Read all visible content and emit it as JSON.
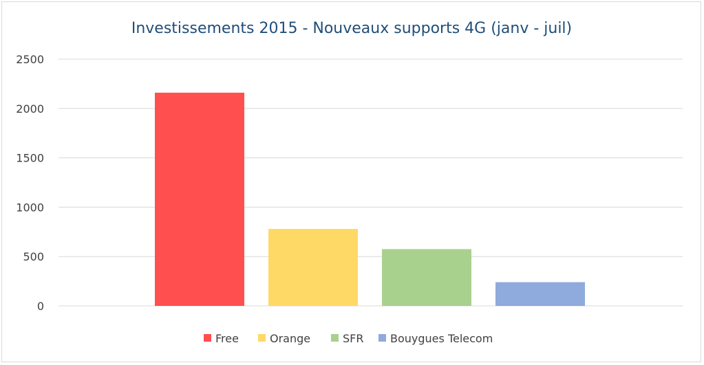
{
  "chart_data": {
    "type": "bar",
    "title": "Investissements 2015 - Nouveaux supports 4G (janv - juil)",
    "xlabel": "",
    "ylabel": "",
    "ylim": [
      0,
      2500
    ],
    "yticks": [
      0,
      500,
      1000,
      1500,
      2000,
      2500
    ],
    "grid": true,
    "legend_position": "bottom",
    "series": [
      {
        "name": "Free",
        "value": 2160,
        "color": "#ff4f4f"
      },
      {
        "name": "Orange",
        "value": 780,
        "color": "#ffd966"
      },
      {
        "name": "SFR",
        "value": 575,
        "color": "#a9d18e"
      },
      {
        "name": "Bouygues Telecom",
        "value": 240,
        "color": "#8faadc"
      }
    ]
  }
}
